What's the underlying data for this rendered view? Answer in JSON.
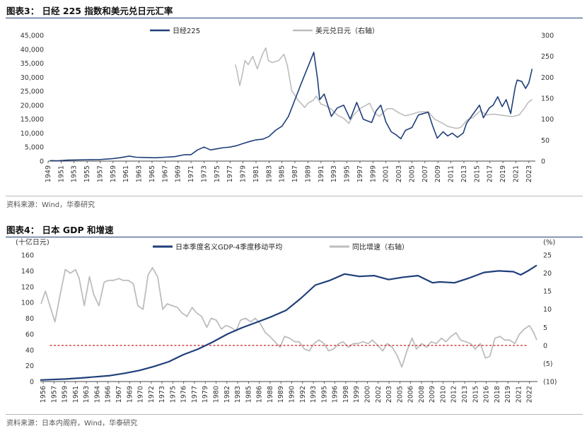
{
  "figure3": {
    "title": "图表3： 日经 225 指数和美元兑日元汇率",
    "source": "资料来源：Wind，华泰研究"
  },
  "figure4": {
    "title": "图表4： 日本 GDP 和增速",
    "source": "资料来源：日本内阁府，Wind，华泰研究"
  },
  "chart_data": [
    {
      "type": "line",
      "title": "日经 225 指数和美元兑日元汇率",
      "x_ticks": [
        "1949",
        "1951",
        "1953",
        "1955",
        "1957",
        "1959",
        "1961",
        "1963",
        "1965",
        "1967",
        "1969",
        "1971",
        "1973",
        "1975",
        "1977",
        "1979",
        "1981",
        "1983",
        "1985",
        "1987",
        "1989",
        "1991",
        "1993",
        "1995",
        "1997",
        "1999",
        "2001",
        "2003",
        "2005",
        "2007",
        "2009",
        "2011",
        "2013",
        "2015",
        "2017",
        "2019",
        "2021",
        "2023"
      ],
      "xlim": [
        1949,
        2024
      ],
      "y_left": {
        "lim": [
          0,
          45000
        ],
        "ticks": [
          "0",
          "5,000",
          "10,000",
          "15,000",
          "20,000",
          "25,000",
          "30,000",
          "35,000",
          "40,000",
          "45,000"
        ]
      },
      "y_right": {
        "lim": [
          0,
          300
        ],
        "ticks": [
          "0",
          "50",
          "100",
          "150",
          "200",
          "250",
          "300"
        ]
      },
      "legend_position": "top",
      "colors": {
        "nikkei": "#1f3f7a",
        "usdjpy": "#bdbdbd"
      },
      "series": [
        {
          "name": "日经225",
          "axis": "left",
          "x": [
            1949.3,
            1950.5,
            1952,
            1953,
            1955,
            1957,
            1959,
            1960,
            1961.5,
            1962.5,
            1964,
            1965.5,
            1967,
            1968.5,
            1970,
            1971,
            1972,
            1973,
            1974,
            1975,
            1976,
            1977,
            1978,
            1979,
            1980,
            1981,
            1982,
            1983,
            1984,
            1985,
            1986,
            1987,
            1988,
            1989.9,
            1990.5,
            1990.8,
            1991.5,
            1992.6,
            1993.5,
            1994.5,
            1995.5,
            1996.5,
            1997.5,
            1998.8,
            1999.5,
            2000.2,
            2001,
            2001.8,
            2002.5,
            2003.3,
            2004,
            2005,
            2006,
            2007.5,
            2008.2,
            2008.9,
            2009.8,
            2010.5,
            2011.2,
            2012,
            2012.9,
            2013.4,
            2014,
            2015.4,
            2016,
            2016.9,
            2017.5,
            2018.2,
            2018.9,
            2019.5,
            2020.2,
            2020.9,
            2021.2,
            2021.9,
            2022.5,
            2023,
            2023.5
          ],
          "y": [
            180,
            100,
            350,
            400,
            500,
            550,
            900,
            1200,
            1800,
            1400,
            1300,
            1200,
            1400,
            1600,
            2300,
            2300,
            4000,
            5000,
            4000,
            4400,
            4800,
            5000,
            5500,
            6300,
            7000,
            7600,
            7800,
            8800,
            11000,
            12500,
            16000,
            22000,
            28000,
            38900,
            29000,
            22000,
            24000,
            16000,
            19000,
            20000,
            15000,
            21000,
            15000,
            13800,
            18000,
            20000,
            14000,
            10500,
            9500,
            8000,
            11000,
            12000,
            16500,
            17500,
            12500,
            8200,
            10500,
            9000,
            10000,
            8500,
            10000,
            13500,
            15500,
            20000,
            15500,
            19000,
            20000,
            23000,
            19500,
            22000,
            17000,
            26500,
            29000,
            28500,
            26000,
            28000,
            33000
          ]
        },
        {
          "name": "美元兑日元（右轴）",
          "axis": "right",
          "x": [
            1977.8,
            1978,
            1978.5,
            1978.8,
            1979.3,
            1979.8,
            1980.5,
            1981.2,
            1982,
            1982.5,
            1982.9,
            1983.5,
            1984.5,
            1985.3,
            1985.8,
            1986.5,
            1987.5,
            1988.5,
            1989,
            1989.8,
            1990.3,
            1991,
            1991.7,
            1992.5,
            1993.5,
            1994.5,
            1995.3,
            1996,
            1997,
            1998.5,
            1999.2,
            2000,
            2001.2,
            2002,
            2003,
            2004,
            2005,
            2006,
            2007.5,
            2008.5,
            2009.5,
            2010.5,
            2011.8,
            2012.5,
            2013.5,
            2014.5,
            2015.5,
            2016.5,
            2017.5,
            2018.5,
            2019.5,
            2020.5,
            2021.5,
            2022.4,
            2022.9,
            2023.5
          ],
          "y": [
            230,
            220,
            180,
            200,
            240,
            230,
            250,
            220,
            255,
            270,
            240,
            235,
            240,
            255,
            230,
            168,
            145,
            128,
            138,
            145,
            155,
            136,
            132,
            125,
            110,
            102,
            90,
            110,
            125,
            138,
            115,
            107,
            125,
            125,
            115,
            108,
            112,
            117,
            118,
            100,
            92,
            83,
            78,
            80,
            98,
            105,
            120,
            110,
            112,
            110,
            108,
            106,
            110,
            128,
            140,
            147
          ]
        }
      ]
    },
    {
      "type": "line",
      "title": "日本 GDP 和增速",
      "x_ticks": [
        "1956",
        "1957",
        "1959",
        "1961",
        "1963",
        "1964",
        "1966",
        "1967",
        "1969",
        "1970",
        "1972",
        "1973",
        "1975",
        "1976",
        "1977",
        "1979",
        "1980",
        "1982",
        "1983",
        "1985",
        "1986",
        "1988",
        "1989",
        "1990",
        "1992",
        "1993",
        "1995",
        "1996",
        "1998",
        "1999",
        "2000",
        "2002",
        "2003",
        "2005",
        "2006",
        "2008",
        "2009",
        "2010",
        "2012",
        "2013",
        "2015",
        "2016",
        "2018",
        "2019",
        "2021",
        "2022"
      ],
      "xlim": [
        1955.5,
        2023.3
      ],
      "y_left": {
        "label": "(十亿日元)",
        "lim": [
          0,
          160
        ],
        "ticks": [
          "0",
          "20",
          "40",
          "60",
          "80",
          "100",
          "120",
          "140",
          "160"
        ]
      },
      "y_right": {
        "label": "(%)",
        "lim": [
          -10,
          25
        ],
        "ticks": [
          "(10)",
          "(5)",
          "0",
          "5",
          "10",
          "15",
          "20",
          "25"
        ]
      },
      "legend_position": "top",
      "reference_line": {
        "axis": "right",
        "value": 0,
        "style": "dashed",
        "color": "#cc1f1f",
        "x_range": [
          1956.8,
          2022
        ]
      },
      "colors": {
        "gdp": "#1f3f7a",
        "growth": "#bdbdbd"
      },
      "series": [
        {
          "name": "日本季度名义GDP-4季度移动平均",
          "axis": "left",
          "x": [
            1955.5,
            1957,
            1959,
            1961,
            1963,
            1965,
            1967,
            1969,
            1971,
            1973,
            1975,
            1977,
            1979,
            1981,
            1983,
            1985,
            1987,
            1989,
            1991,
            1993,
            1995,
            1997,
            1999,
            2001,
            2003,
            2005,
            2007,
            2009,
            2010,
            2012,
            2014,
            2016,
            2018,
            2020,
            2021,
            2022,
            2023.2
          ],
          "y": [
            2,
            2.5,
            3.2,
            4.5,
            6,
            7.5,
            10.5,
            14,
            19,
            25,
            34,
            41,
            50,
            60,
            68,
            75,
            82,
            90,
            105,
            122,
            128,
            136,
            133,
            134,
            129,
            132,
            134,
            125,
            126,
            125,
            131,
            138,
            140,
            139,
            135,
            140,
            147
          ]
        },
        {
          "name": "同比增速（右轴）",
          "axis": "right",
          "x": [
            1955.6,
            1956.2,
            1956.8,
            1957.5,
            1958.2,
            1958.9,
            1959.6,
            1960.3,
            1960.8,
            1961.5,
            1962.2,
            1962.8,
            1963.5,
            1964.2,
            1964.8,
            1965.5,
            1966.2,
            1966.8,
            1967.5,
            1968.2,
            1968.8,
            1969.5,
            1970.2,
            1970.8,
            1971.5,
            1972.2,
            1972.8,
            1973.5,
            1974.2,
            1974.8,
            1975.5,
            1976.2,
            1976.8,
            1977.5,
            1978.2,
            1978.8,
            1979.5,
            1980.2,
            1980.8,
            1981.5,
            1982.2,
            1982.8,
            1983.5,
            1984.2,
            1984.8,
            1985.5,
            1986.2,
            1986.8,
            1987.5,
            1988.2,
            1988.8,
            1989.5,
            1990.2,
            1990.8,
            1991.5,
            1992.2,
            1992.8,
            1993.5,
            1994.2,
            1994.8,
            1995.5,
            1996.2,
            1996.8,
            1997.5,
            1998.2,
            1998.8,
            1999.5,
            2000.2,
            2000.8,
            2001.5,
            2002.2,
            2002.8,
            2003.5,
            2004.2,
            2004.8,
            2005.5,
            2006.2,
            2006.8,
            2007.5,
            2008.2,
            2008.8,
            2009.5,
            2010.2,
            2010.8,
            2011.5,
            2012.2,
            2012.8,
            2013.5,
            2014.2,
            2014.8,
            2015.5,
            2016.2,
            2016.8,
            2017.5,
            2018.2,
            2018.8,
            2019.5,
            2020.2,
            2020.8,
            2021.5,
            2022.2,
            2022.8,
            2023.2
          ],
          "y": [
            11.5,
            15,
            11,
            6.5,
            14,
            21,
            20,
            21,
            18.5,
            11,
            19,
            14,
            11,
            17.5,
            18,
            18,
            18.5,
            18,
            18,
            17,
            11,
            10,
            19.5,
            21.5,
            19,
            10,
            11.5,
            11,
            10.5,
            9,
            8,
            10.5,
            9,
            8,
            5,
            7.5,
            7,
            4.5,
            5.5,
            5,
            4,
            7,
            7.5,
            6.5,
            7.5,
            6,
            3.5,
            2.5,
            1,
            -0.5,
            2.5,
            2,
            1,
            1,
            -1,
            -1.5,
            0.5,
            1.5,
            0.5,
            -1.5,
            -1,
            0.5,
            1,
            -0.5,
            0.5,
            0.5,
            1,
            0.5,
            1.5,
            0,
            -1.5,
            0.5,
            -0.5,
            -3,
            -6,
            -1.5,
            2,
            -1,
            0.5,
            -0.5,
            1,
            0.5,
            2,
            1,
            2.5,
            3.5,
            1.5,
            1,
            0.5,
            -1,
            0.5,
            -3.5,
            -3,
            2,
            2.5,
            1.5,
            1.5,
            0.5,
            3,
            4.5,
            5.5,
            3.5,
            1.5
          ]
        }
      ]
    }
  ]
}
